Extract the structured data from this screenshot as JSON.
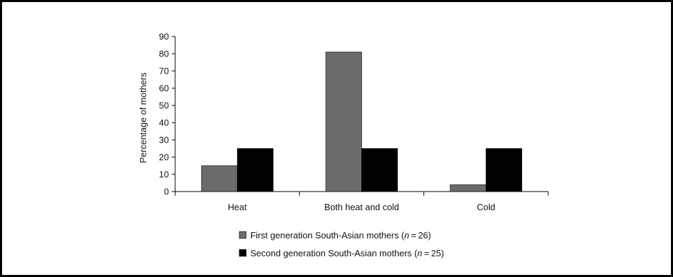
{
  "chart_data": {
    "type": "bar",
    "categories": [
      "Heat",
      "Both heat and cold",
      "Cold"
    ],
    "series": [
      {
        "name": "First generation South-Asian mothers (n = 26)",
        "legend_prefix": "First generation South-Asian mothers (",
        "legend_n": "n",
        "legend_suffix": " = 26)",
        "color": "#6b6b6b",
        "values": [
          15,
          81,
          4
        ]
      },
      {
        "name": "Second generation South-Asian mothers (n = 25)",
        "legend_prefix": "Second generation South-Asian mothers (",
        "legend_n": "n",
        "legend_suffix": " = 25)",
        "color": "#000000",
        "values": [
          25,
          25,
          25
        ]
      }
    ],
    "title": "",
    "xlabel": "",
    "ylabel": "Percentage of mothers",
    "ylim": [
      0,
      90
    ],
    "yticks": [
      0,
      10,
      20,
      30,
      40,
      50,
      60,
      70,
      80,
      90
    ],
    "grid": false,
    "legend_position": "bottom-center"
  }
}
